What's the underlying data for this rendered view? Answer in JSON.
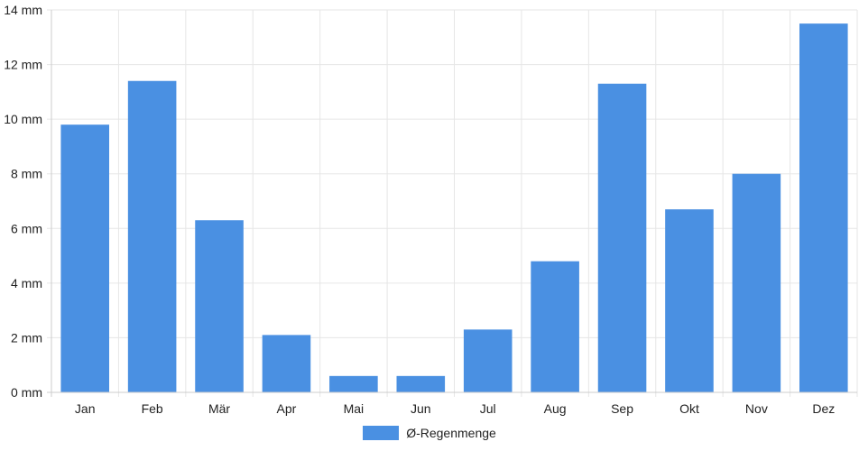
{
  "colors": {
    "bar": "#4a90e2",
    "grid": "#e6e6e6",
    "axis": "#cccccc",
    "text": "#222222"
  },
  "legend": {
    "label": "Ø-Regenmenge"
  },
  "chart_data": {
    "type": "bar",
    "categories": [
      "Jan",
      "Feb",
      "Mär",
      "Apr",
      "Mai",
      "Jun",
      "Jul",
      "Aug",
      "Sep",
      "Okt",
      "Nov",
      "Dez"
    ],
    "series": [
      {
        "name": "Ø-Regenmenge",
        "values": [
          9.8,
          11.4,
          6.3,
          2.1,
          0.6,
          0.6,
          2.3,
          4.8,
          11.3,
          6.7,
          8.0,
          13.5
        ]
      }
    ],
    "yticks": [
      "0 mm",
      "2 mm",
      "4 mm",
      "6 mm",
      "8 mm",
      "10 mm",
      "12 mm",
      "14 mm"
    ],
    "ylim": [
      0,
      14
    ],
    "grid": true,
    "legend_position": "bottom-center"
  }
}
